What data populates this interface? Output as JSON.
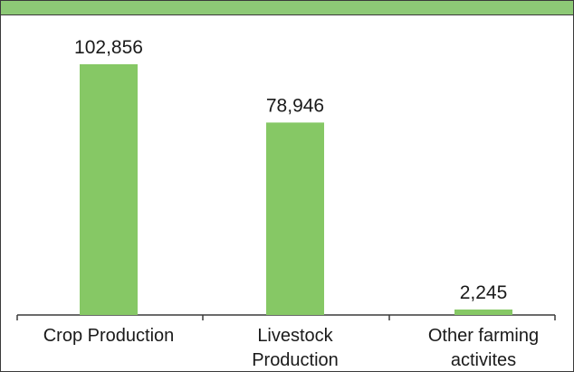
{
  "chart_data": {
    "type": "bar",
    "categories": [
      [
        "Crop Production"
      ],
      [
        "Livestock",
        "Production"
      ],
      [
        "Other farming",
        "activites"
      ]
    ],
    "values": [
      102856,
      78946,
      2245
    ],
    "value_labels": [
      "102,856",
      "78,946",
      "2,245"
    ],
    "colors": {
      "bar": "#86c865",
      "header": "#8dc976",
      "axis": "#3a3a3a"
    },
    "ylim": [
      0,
      102856
    ],
    "grid": false
  }
}
